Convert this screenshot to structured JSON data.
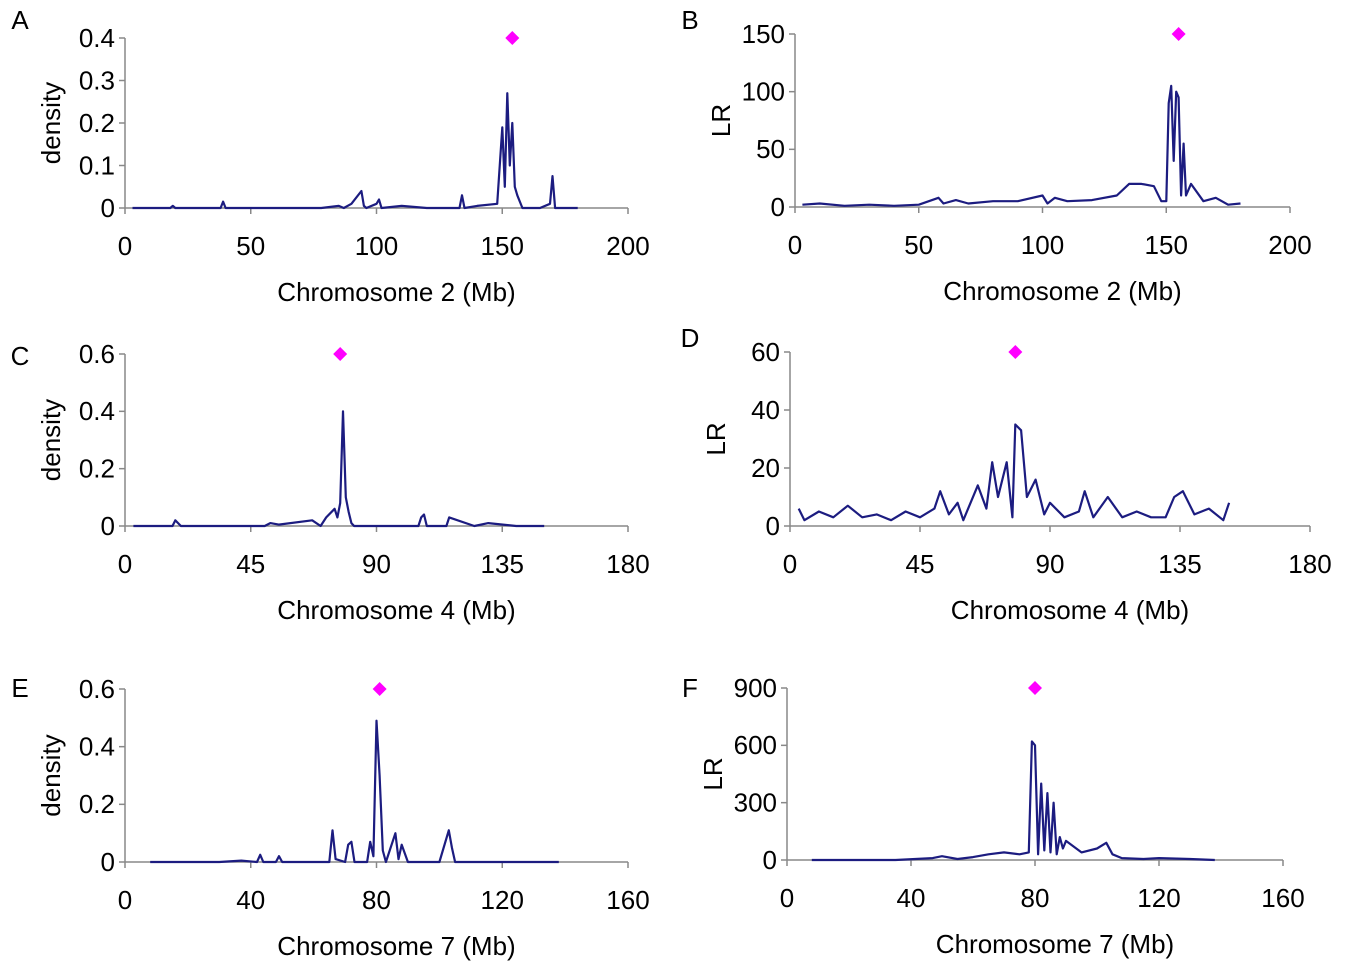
{
  "chart_data": [
    {
      "type": "line",
      "label": "A",
      "ylabel": "density",
      "xlabel": "Chromosome 2 (Mb)",
      "xlim": [
        0,
        200
      ],
      "xticks": [
        0,
        50,
        100,
        150,
        200
      ],
      "ylim": [
        0,
        0.4
      ],
      "yticks": [
        0,
        0.1,
        0.2,
        0.3,
        0.4
      ],
      "x": [
        3,
        18,
        19,
        20,
        38,
        39,
        40,
        78,
        85,
        87,
        90,
        94,
        95,
        96,
        100,
        101,
        102,
        110,
        120,
        133,
        134,
        135,
        140,
        148,
        150,
        151,
        152,
        153,
        154,
        155,
        156,
        158,
        165,
        169,
        170,
        171,
        180
      ],
      "series": [
        {
          "color": "#1c1c80",
          "values": [
            0,
            0,
            0.005,
            0,
            0,
            0.015,
            0,
            0,
            0.005,
            0,
            0.01,
            0.04,
            0.005,
            0,
            0.01,
            0.02,
            0,
            0.005,
            0,
            0,
            0.03,
            0,
            0.005,
            0.01,
            0.19,
            0.05,
            0.27,
            0.1,
            0.2,
            0.05,
            0.03,
            0,
            0,
            0.01,
            0.075,
            0,
            0
          ]
        }
      ],
      "marker": {
        "x": 154,
        "y": 0.4,
        "color": "#ff00ff"
      }
    },
    {
      "type": "line",
      "label": "B",
      "ylabel": "LR",
      "xlabel": "Chromosome 2 (Mb)",
      "xlim": [
        0,
        200
      ],
      "xticks": [
        0,
        50,
        100,
        150,
        200
      ],
      "ylim": [
        0,
        150
      ],
      "yticks": [
        0,
        50,
        100,
        150
      ],
      "x": [
        3,
        10,
        20,
        30,
        40,
        50,
        58,
        60,
        65,
        70,
        80,
        90,
        100,
        102,
        105,
        110,
        120,
        130,
        135,
        140,
        145,
        148,
        150,
        151,
        152,
        153,
        154,
        155,
        156,
        157,
        158,
        160,
        165,
        170,
        175,
        180
      ],
      "series": [
        {
          "color": "#1c1c80",
          "values": [
            2,
            3,
            1,
            2,
            1,
            2,
            8,
            3,
            6,
            3,
            5,
            5,
            10,
            3,
            8,
            5,
            6,
            10,
            20,
            20,
            18,
            5,
            5,
            90,
            105,
            40,
            100,
            95,
            10,
            55,
            10,
            20,
            5,
            8,
            2,
            3
          ]
        }
      ],
      "marker": {
        "x": 155,
        "y": 150,
        "color": "#ff00ff"
      }
    },
    {
      "type": "line",
      "label": "C",
      "ylabel": "density",
      "xlabel": "Chromosome 4 (Mb)",
      "xlim": [
        0,
        180
      ],
      "xticks": [
        0,
        45,
        90,
        135,
        180
      ],
      "ylim": [
        0,
        0.6
      ],
      "yticks": [
        0,
        0.2,
        0.4,
        0.6
      ],
      "x": [
        3,
        17,
        18,
        19,
        20,
        50,
        52,
        55,
        67,
        70,
        72,
        75,
        76,
        77,
        78,
        79,
        80,
        81,
        82,
        84,
        105,
        106,
        107,
        108,
        115,
        116,
        125,
        130,
        140,
        150
      ],
      "series": [
        {
          "color": "#1c1c80",
          "values": [
            0,
            0,
            0.02,
            0.01,
            0,
            0,
            0.01,
            0.005,
            0.02,
            0,
            0.03,
            0.06,
            0.03,
            0.08,
            0.4,
            0.1,
            0.05,
            0.01,
            0,
            0,
            0,
            0.03,
            0.04,
            0,
            0,
            0.03,
            0,
            0.01,
            0,
            0
          ]
        }
      ],
      "marker": {
        "x": 77,
        "y": 0.6,
        "color": "#ff00ff"
      }
    },
    {
      "type": "line",
      "label": "D",
      "ylabel": "LR",
      "xlabel": "Chromosome 4 (Mb)",
      "xlim": [
        0,
        180
      ],
      "xticks": [
        0,
        45,
        90,
        135,
        180
      ],
      "ylim": [
        0,
        60
      ],
      "yticks": [
        0,
        20,
        40,
        60
      ],
      "x": [
        3,
        5,
        10,
        15,
        20,
        25,
        30,
        35,
        40,
        45,
        50,
        52,
        55,
        58,
        60,
        65,
        68,
        70,
        72,
        75,
        77,
        78,
        80,
        82,
        85,
        88,
        90,
        95,
        100,
        102,
        105,
        110,
        115,
        120,
        125,
        130,
        133,
        136,
        140,
        145,
        150,
        152
      ],
      "series": [
        {
          "color": "#1c1c80",
          "values": [
            6,
            2,
            5,
            3,
            7,
            3,
            4,
            2,
            5,
            3,
            6,
            12,
            4,
            8,
            2,
            14,
            6,
            22,
            10,
            22,
            3,
            35,
            33,
            10,
            16,
            4,
            8,
            3,
            5,
            12,
            3,
            10,
            3,
            5,
            3,
            3,
            10,
            12,
            4,
            6,
            2,
            8
          ]
        }
      ],
      "marker": {
        "x": 78,
        "y": 60,
        "color": "#ff00ff"
      }
    },
    {
      "type": "line",
      "label": "E",
      "ylabel": "density",
      "xlabel": "Chromosome 7 (Mb)",
      "xlim": [
        0,
        160
      ],
      "xticks": [
        0,
        40,
        80,
        120,
        160
      ],
      "ylim": [
        0,
        0.6
      ],
      "yticks": [
        0,
        0.2,
        0.4,
        0.6
      ],
      "x": [
        8,
        30,
        37,
        42,
        43,
        44,
        48,
        49,
        50,
        65,
        66,
        67,
        70,
        71,
        72,
        73,
        77,
        78,
        79,
        80,
        81,
        82,
        83,
        86,
        87,
        88,
        90,
        100,
        103,
        104,
        105,
        118,
        138
      ],
      "series": [
        {
          "color": "#1c1c80",
          "values": [
            0,
            0,
            0.005,
            0,
            0.025,
            0,
            0,
            0.02,
            0,
            0,
            0.11,
            0.01,
            0,
            0.06,
            0.07,
            0,
            0,
            0.07,
            0.02,
            0.49,
            0.3,
            0.04,
            0,
            0.1,
            0.01,
            0.06,
            0,
            0,
            0.11,
            0.05,
            0,
            0,
            0
          ]
        }
      ],
      "marker": {
        "x": 81,
        "y": 0.6,
        "color": "#ff00ff"
      }
    },
    {
      "type": "line",
      "label": "F",
      "ylabel": "LR",
      "xlabel": "Chromosome 7 (Mb)",
      "xlim": [
        0,
        160
      ],
      "xticks": [
        0,
        40,
        80,
        120,
        160
      ],
      "ylim": [
        0,
        900
      ],
      "yticks": [
        0,
        300,
        600,
        900
      ],
      "x": [
        8,
        35,
        47,
        50,
        55,
        60,
        65,
        70,
        75,
        78,
        79,
        80,
        81,
        82,
        83,
        84,
        85,
        86,
        87,
        88,
        89,
        90,
        95,
        100,
        103,
        105,
        108,
        115,
        120,
        130,
        138
      ],
      "series": [
        {
          "color": "#1c1c80",
          "values": [
            0,
            0,
            10,
            20,
            5,
            15,
            30,
            40,
            30,
            40,
            620,
            600,
            30,
            400,
            50,
            350,
            40,
            300,
            30,
            120,
            60,
            100,
            40,
            60,
            90,
            30,
            10,
            5,
            10,
            5,
            0
          ]
        }
      ],
      "marker": {
        "x": 80,
        "y": 900,
        "color": "#ff00ff"
      }
    }
  ]
}
